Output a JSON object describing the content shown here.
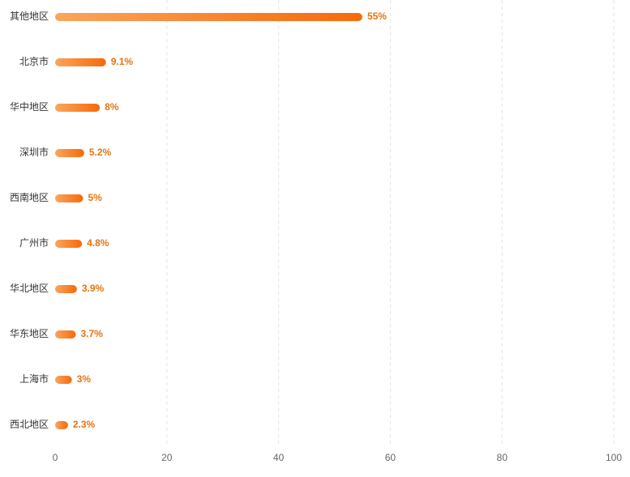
{
  "chart_data": {
    "type": "bar",
    "orientation": "horizontal",
    "categories": [
      "其他地区",
      "北京市",
      "华中地区",
      "深圳市",
      "西南地区",
      "广州市",
      "华北地区",
      "华东地区",
      "上海市",
      "西北地区"
    ],
    "values": [
      55,
      9.1,
      8,
      5.2,
      5,
      4.8,
      3.9,
      3.7,
      3,
      2.3
    ],
    "value_labels": [
      "55%",
      "9.1%",
      "8%",
      "5.2%",
      "5%",
      "4.8%",
      "3.9%",
      "3.7%",
      "3%",
      "2.3%"
    ],
    "color": [
      "#fba55c",
      "#f56a0a"
    ],
    "xlim": [
      0,
      100
    ],
    "xticks": [
      0,
      20,
      40,
      60,
      80,
      100
    ],
    "grid": true
  }
}
